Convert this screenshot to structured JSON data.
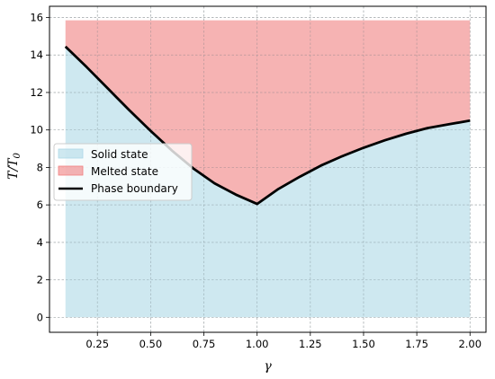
{
  "chart_data": {
    "type": "area",
    "xlabel": "γ",
    "ylabel": "T/T0",
    "ylabel_main": "T/T",
    "ylabel_sub": "0",
    "xlim": [
      0.025,
      2.075
    ],
    "ylim": [
      -0.8,
      16.6
    ],
    "grid": true,
    "legend_position": "center-left",
    "x_ticks": [
      0.25,
      0.5,
      0.75,
      1.0,
      1.25,
      1.5,
      1.75,
      2.0
    ],
    "x_tick_labels": [
      "0.25",
      "0.50",
      "0.75",
      "1.00",
      "1.25",
      "1.50",
      "1.75",
      "2.00"
    ],
    "y_ticks": [
      0,
      2,
      4,
      6,
      8,
      10,
      12,
      14,
      16
    ],
    "y_tick_labels": [
      "0",
      "2",
      "4",
      "6",
      "8",
      "10",
      "12",
      "14",
      "16"
    ],
    "melted_top": 15.85,
    "series": [
      {
        "name": "Solid state",
        "role": "solid-fill",
        "color": "#add8e6"
      },
      {
        "name": "Melted state",
        "role": "melted-fill",
        "color": "#f08080"
      },
      {
        "name": "Phase boundary",
        "role": "boundary-line",
        "color": "#000000",
        "x": [
          0.1,
          0.2,
          0.3,
          0.4,
          0.5,
          0.6,
          0.7,
          0.8,
          0.9,
          1.0,
          1.1,
          1.2,
          1.3,
          1.4,
          1.5,
          1.6,
          1.7,
          1.8,
          1.9,
          2.0
        ],
        "y": [
          14.45,
          13.35,
          12.2,
          11.05,
          9.95,
          8.9,
          7.95,
          7.15,
          6.55,
          6.05,
          6.85,
          7.5,
          8.1,
          8.6,
          9.05,
          9.45,
          9.8,
          10.1,
          10.3,
          10.5
        ]
      }
    ]
  }
}
